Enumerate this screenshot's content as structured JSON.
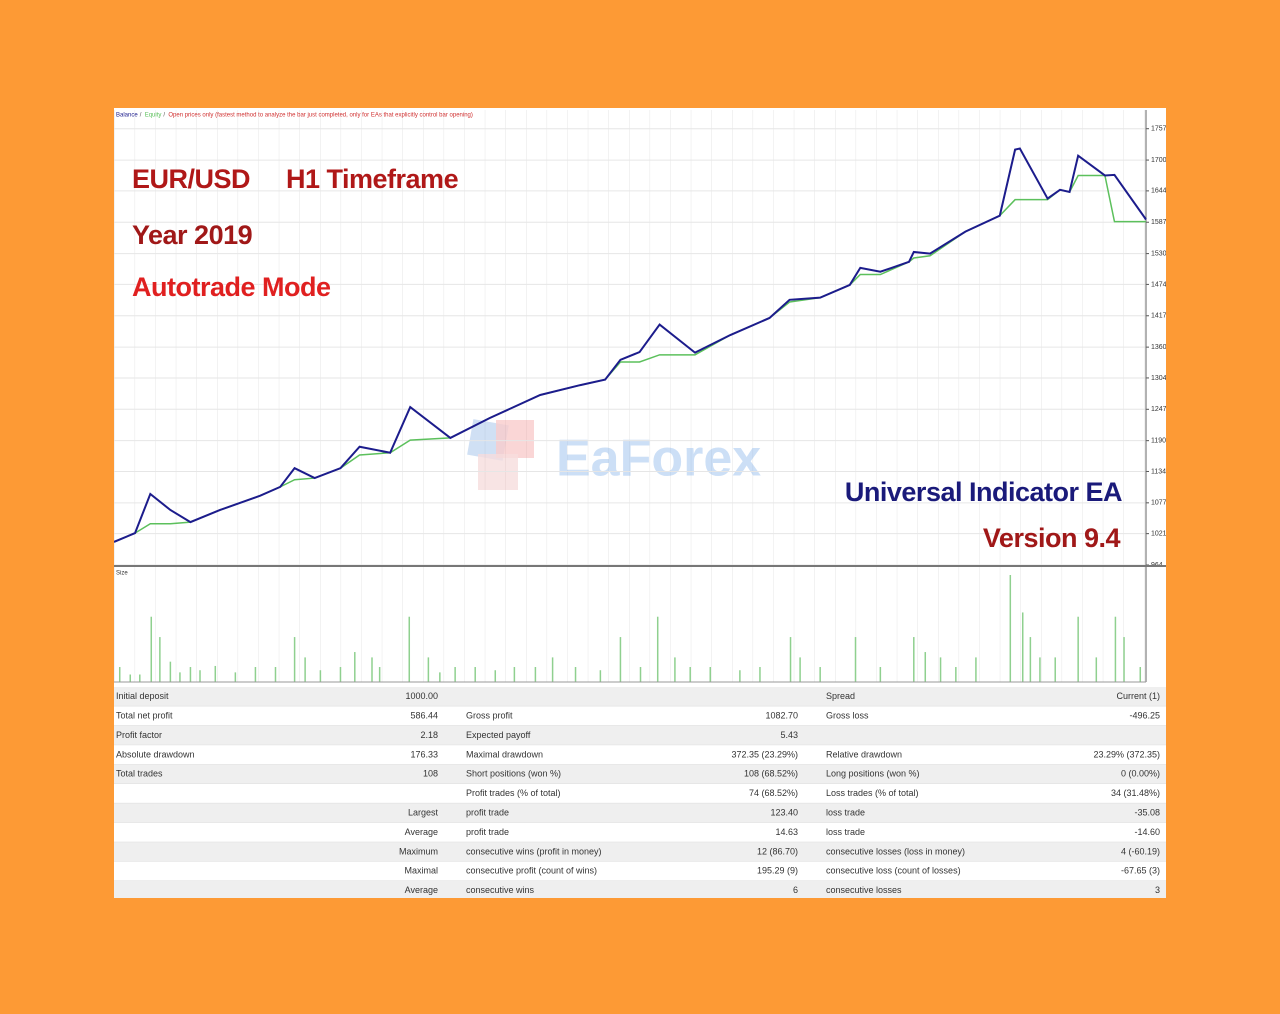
{
  "chart_data": [
    {
      "type": "line",
      "subtitle": "Open prices only (fastest method to analyze the bar just completed, only for EAs that explicitly control bar opening)",
      "annotations": [
        "EUR/USD",
        "H1 Timeframe",
        "Year 2019",
        "Autotrade Mode",
        "Universal Indicator EA",
        "Version 9.4"
      ],
      "x": [
        0,
        2.2,
        3.8,
        5.9,
        8.0,
        11.1,
        15.3,
        17.4,
        18.9,
        21.0,
        23.7,
        25.7,
        28.9,
        31.0,
        35.2,
        39.3,
        44.6,
        48.8,
        51.4,
        53.0,
        55.0,
        57.1,
        60.8,
        64.5,
        68.6,
        70.7,
        73.9,
        77.0,
        78.1,
        80.2,
        83.2,
        83.7,
        85.4,
        89.1,
        92.7,
        94.3,
        94.8,
        97.7,
        99.0,
        100.0,
        100.9,
        103.7,
        104.7,
        108
      ],
      "series": [
        {
          "name": "Balance",
          "color": "#1c1c8c",
          "values": [
            1006,
            1022,
            1093,
            1064,
            1042,
            1064,
            1090,
            1106,
            1140,
            1122,
            1140,
            1179,
            1168,
            1251,
            1195,
            1231,
            1273,
            1291,
            1301,
            1337,
            1351,
            1401,
            1350,
            1382,
            1413,
            1446,
            1450,
            1473,
            1504,
            1497,
            1515,
            1533,
            1530,
            1570,
            1599,
            1719,
            1721,
            1630,
            1646,
            1642,
            1708,
            1672,
            1673,
            1592
          ]
        },
        {
          "name": "Equity",
          "color": "#5cc05c",
          "values": [
            1006,
            1022,
            1039,
            1039,
            1042,
            1064,
            1090,
            1106,
            1119,
            1122,
            1140,
            1164,
            1168,
            1191,
            1195,
            1231,
            1273,
            1291,
            1301,
            1333,
            1333,
            1346,
            1346,
            1382,
            1413,
            1442,
            1450,
            1473,
            1492,
            1492,
            1515,
            1522,
            1526,
            1570,
            1599,
            1628,
            1628,
            1628,
            1646,
            1642,
            1672,
            1672,
            1588,
            1588
          ]
        }
      ],
      "xlim": [
        0,
        108
      ],
      "ylim": [
        964,
        1791
      ],
      "yticks": [
        964,
        1021,
        1077,
        1134,
        1190,
        1247,
        1304,
        1360,
        1417,
        1474,
        1530,
        1587,
        1644,
        1700,
        1757
      ],
      "grid": true
    },
    {
      "type": "bar",
      "title": "Size",
      "color": "#8fd08f",
      "x": [
        0.6,
        1.7,
        2.7,
        3.9,
        4.8,
        5.9,
        6.9,
        8.0,
        9.0,
        10.6,
        12.7,
        14.8,
        16.9,
        18.9,
        20.0,
        21.6,
        23.7,
        25.2,
        27.0,
        27.8,
        30.9,
        32.9,
        34.1,
        35.7,
        37.8,
        39.9,
        41.9,
        44.1,
        45.9,
        48.3,
        50.9,
        53.0,
        55.1,
        56.9,
        58.7,
        60.3,
        62.4,
        65.5,
        67.6,
        70.8,
        71.8,
        73.9,
        77.6,
        80.2,
        83.7,
        84.9,
        86.5,
        88.1,
        90.2,
        93.8,
        95.1,
        95.9,
        96.9,
        98.5,
        100.9,
        102.8,
        104.8,
        105.7,
        107.4
      ],
      "values": [
        1.4,
        0.7,
        0.7,
        6.1,
        4.2,
        1.9,
        0.9,
        1.4,
        1.1,
        1.5,
        0.9,
        1.4,
        1.4,
        4.2,
        2.3,
        1.1,
        1.4,
        2.8,
        2.3,
        1.4,
        6.1,
        2.3,
        0.9,
        1.4,
        1.4,
        1.1,
        1.4,
        1.4,
        2.3,
        1.4,
        1.1,
        4.2,
        1.4,
        6.1,
        2.3,
        1.4,
        1.4,
        1.1,
        1.4,
        4.2,
        2.3,
        1.4,
        4.2,
        1.4,
        4.2,
        2.8,
        2.3,
        1.4,
        2.3,
        10,
        6.5,
        4.2,
        2.3,
        2.3,
        6.1,
        2.3,
        6.1,
        4.2,
        1.4
      ],
      "xlim": [
        0,
        108
      ],
      "ylim": [
        0,
        10
      ]
    }
  ],
  "watermark": "EaForex",
  "table": {
    "rows": [
      [
        "Initial deposit",
        "1000.00",
        null,
        null,
        "Spread",
        "Current (1)"
      ],
      [
        "Total net profit",
        "586.44",
        "Gross profit",
        "1082.70",
        "Gross loss",
        "-496.25"
      ],
      [
        "Profit factor",
        "2.18",
        "Expected payoff",
        "5.43",
        null,
        null
      ],
      [
        "Absolute drawdown",
        "176.33",
        "Maximal drawdown",
        "372.35 (23.29%)",
        "Relative drawdown",
        "23.29% (372.35)"
      ],
      [
        "Total trades",
        "108",
        "Short positions (won %)",
        "108 (68.52%)",
        "Long positions (won %)",
        "0 (0.00%)"
      ],
      [
        null,
        null,
        "Profit trades (% of total)",
        "74 (68.52%)",
        "Loss trades (% of total)",
        "34 (31.48%)"
      ],
      [
        null,
        "Largest",
        "profit trade",
        "123.40",
        "loss trade",
        "-35.08"
      ],
      [
        null,
        "Average",
        "profit trade",
        "14.63",
        "loss trade",
        "-14.60"
      ],
      [
        null,
        "Maximum",
        "consecutive wins (profit in money)",
        "12 (86.70)",
        "consecutive losses (loss in money)",
        "4 (-60.19)"
      ],
      [
        null,
        "Maximal",
        "consecutive profit (count of wins)",
        "195.29 (9)",
        "consecutive loss (count of losses)",
        "-67.65 (3)"
      ],
      [
        null,
        "Average",
        "consecutive wins",
        "6",
        "consecutive losses",
        "3"
      ]
    ]
  }
}
